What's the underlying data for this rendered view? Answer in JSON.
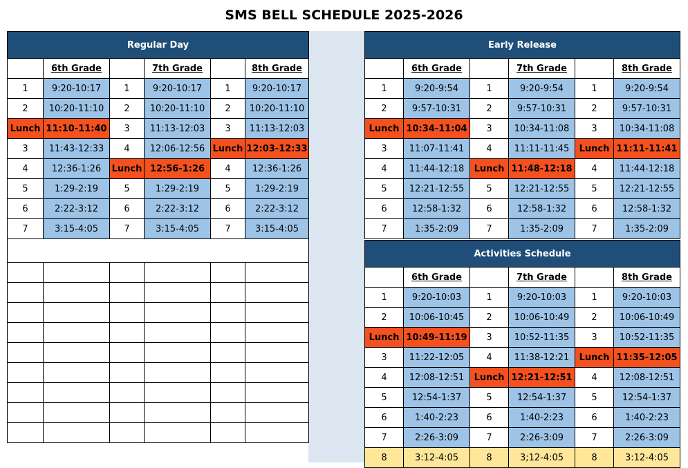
{
  "title": "SMS BELL SCHEDULE 2025-2026",
  "colors": {
    "header_bg": "#1f4e79",
    "period_bg": "#9dc3e6",
    "lunch_bg": "#f4511e",
    "highlight_bg": "#ffe699",
    "gap_bg": "#dce6f1"
  },
  "grade_headers": [
    "6th Grade",
    "7th Grade",
    "8th Grade"
  ],
  "regular": {
    "title": "Regular Day",
    "rows": [
      [
        {
          "p": "1",
          "t": "9:20-10:17"
        },
        {
          "p": "1",
          "t": "9:20-10:17"
        },
        {
          "p": "1",
          "t": "9:20-10:17"
        }
      ],
      [
        {
          "p": "2",
          "t": "10:20-11:10"
        },
        {
          "p": "2",
          "t": "10:20-11:10"
        },
        {
          "p": "2",
          "t": "10:20-11:10"
        }
      ],
      [
        {
          "p": "Lunch",
          "t": "11:10-11:40",
          "lunch": true
        },
        {
          "p": "3",
          "t": "11:13-12:03"
        },
        {
          "p": "3",
          "t": "11:13-12:03"
        }
      ],
      [
        {
          "p": "3",
          "t": "11:43-12:33"
        },
        {
          "p": "4",
          "t": "12:06-12:56"
        },
        {
          "p": "Lunch",
          "t": "12:03-12:33",
          "lunch": true
        }
      ],
      [
        {
          "p": "4",
          "t": "12:36-1:26"
        },
        {
          "p": "Lunch",
          "t": "12:56-1:26",
          "lunch": true
        },
        {
          "p": "4",
          "t": "12:36-1:26"
        }
      ],
      [
        {
          "p": "5",
          "t": "1:29-2:19"
        },
        {
          "p": "5",
          "t": "1:29-2:19"
        },
        {
          "p": "5",
          "t": "1:29-2:19"
        }
      ],
      [
        {
          "p": "6",
          "t": "2:22-3:12"
        },
        {
          "p": "6",
          "t": "2:22-3:12"
        },
        {
          "p": "6",
          "t": "2:22-3:12"
        }
      ],
      [
        {
          "p": "7",
          "t": "3:15-4:05"
        },
        {
          "p": "7",
          "t": "3:15-4:05"
        },
        {
          "p": "7",
          "t": "3:15-4:05"
        }
      ]
    ]
  },
  "early": {
    "title": "Early Release",
    "rows": [
      [
        {
          "p": "1",
          "t": "9:20-9:54"
        },
        {
          "p": "1",
          "t": "9:20-9:54"
        },
        {
          "p": "1",
          "t": "9:20-9:54"
        }
      ],
      [
        {
          "p": "2",
          "t": "9:57-10:31"
        },
        {
          "p": "2",
          "t": "9:57-10:31"
        },
        {
          "p": "2",
          "t": "9:57-10:31"
        }
      ],
      [
        {
          "p": "Lunch",
          "t": "10:34-11:04",
          "lunch": true
        },
        {
          "p": "3",
          "t": "10:34-11:08"
        },
        {
          "p": "3",
          "t": "10:34-11:08"
        }
      ],
      [
        {
          "p": "3",
          "t": "11:07-11:41"
        },
        {
          "p": "4",
          "t": "11:11-11:45"
        },
        {
          "p": "Lunch",
          "t": "11:11-11:41",
          "lunch": true
        }
      ],
      [
        {
          "p": "4",
          "t": "11:44-12:18"
        },
        {
          "p": "Lunch",
          "t": "11:48-12:18",
          "lunch": true
        },
        {
          "p": "4",
          "t": "11:44-12:18"
        }
      ],
      [
        {
          "p": "5",
          "t": "12:21-12:55"
        },
        {
          "p": "5",
          "t": "12:21-12:55"
        },
        {
          "p": "5",
          "t": "12:21-12:55"
        }
      ],
      [
        {
          "p": "6",
          "t": "12:58-1:32"
        },
        {
          "p": "6",
          "t": "12:58-1:32"
        },
        {
          "p": "6",
          "t": "12:58-1:32"
        }
      ],
      [
        {
          "p": "7",
          "t": "1:35-2:09"
        },
        {
          "p": "7",
          "t": "1:35-2:09"
        },
        {
          "p": "7",
          "t": "1:35-2:09"
        }
      ]
    ]
  },
  "activities": {
    "title": "Activities Schedule",
    "rows": [
      [
        {
          "p": "1",
          "t": "9:20-10:03"
        },
        {
          "p": "1",
          "t": "9:20-10:03"
        },
        {
          "p": "1",
          "t": "9:20-10:03"
        }
      ],
      [
        {
          "p": "2",
          "t": "10:06-10:45"
        },
        {
          "p": "2",
          "t": "10:06-10:49"
        },
        {
          "p": "2",
          "t": "10:06-10:49"
        }
      ],
      [
        {
          "p": "Lunch",
          "t": "10:49-11:19",
          "lunch": true
        },
        {
          "p": "3",
          "t": "10:52-11:35"
        },
        {
          "p": "3",
          "t": "10:52-11:35"
        }
      ],
      [
        {
          "p": "3",
          "t": "11:22-12:05"
        },
        {
          "p": "4",
          "t": "11:38-12:21"
        },
        {
          "p": "Lunch",
          "t": "11:35-12:05",
          "lunch": true
        }
      ],
      [
        {
          "p": "4",
          "t": "12:08-12:51"
        },
        {
          "p": "Lunch",
          "t": "12:21-12:51",
          "lunch": true
        },
        {
          "p": "4",
          "t": "12:08-12:51"
        }
      ],
      [
        {
          "p": "5",
          "t": "12:54-1:37"
        },
        {
          "p": "5",
          "t": "12:54-1:37"
        },
        {
          "p": "5",
          "t": "12:54-1:37"
        }
      ],
      [
        {
          "p": "6",
          "t": "1:40-2:23"
        },
        {
          "p": "6",
          "t": "1:40-2:23"
        },
        {
          "p": "6",
          "t": "1:40-2:23"
        }
      ],
      [
        {
          "p": "7",
          "t": "2:26-3:09"
        },
        {
          "p": "7",
          "t": "2:26-3:09"
        },
        {
          "p": "7",
          "t": "2:26-3:09"
        }
      ],
      [
        {
          "p": "8",
          "t": "3:12-4:05",
          "hl": true
        },
        {
          "p": "8",
          "t": "3;12-4:05",
          "hl": true
        },
        {
          "p": "8",
          "t": "3:12-4:05",
          "hl": true
        }
      ]
    ]
  }
}
